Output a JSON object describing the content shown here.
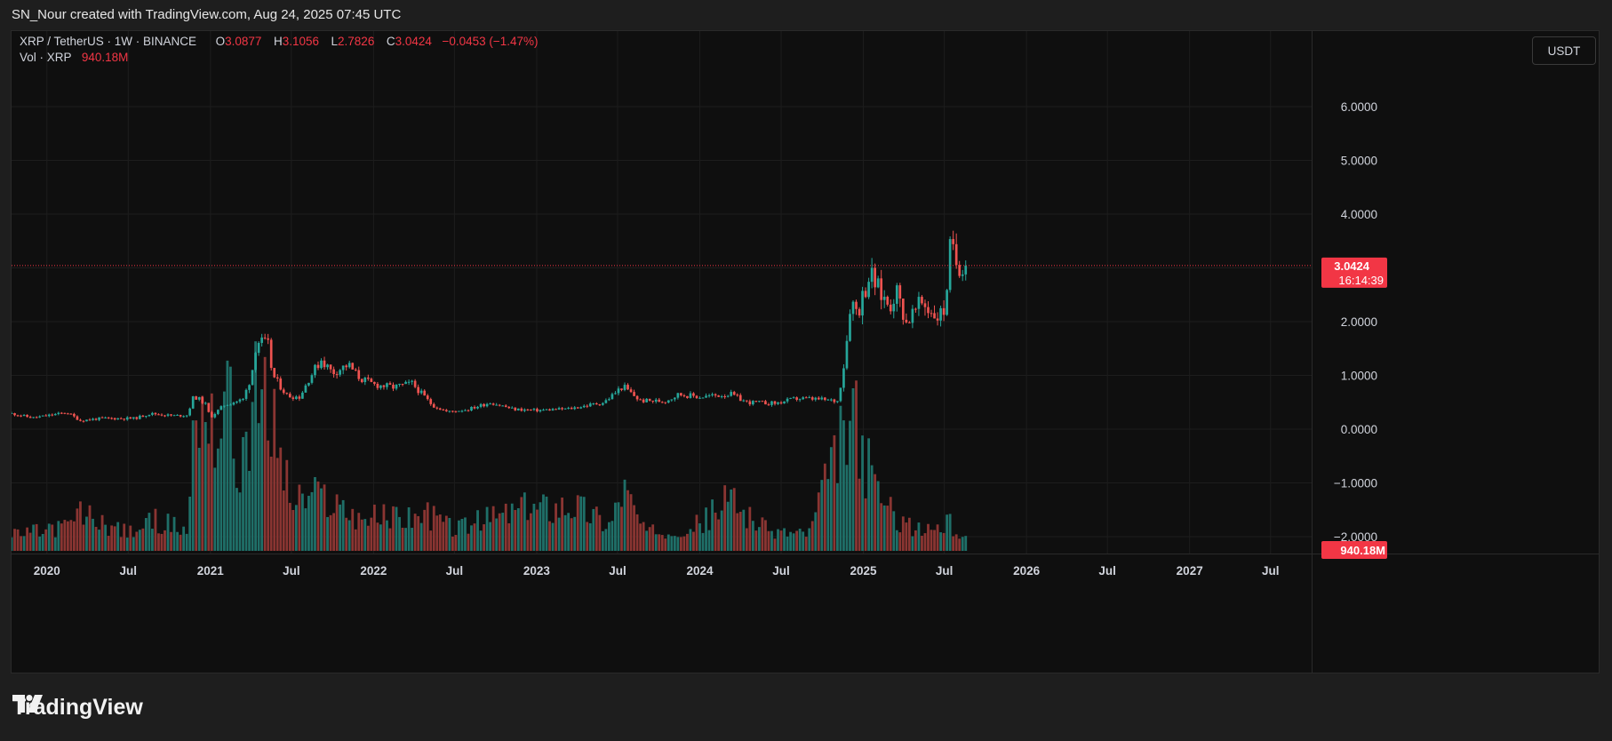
{
  "attribution": "SN_Nour created with TradingView.com, Aug 24, 2025 07:45 UTC",
  "legend": {
    "symbol": "XRP / TetherUS · 1W · BINANCE",
    "o_label": "O",
    "o_value": "3.0877",
    "h_label": "H",
    "h_value": "3.1056",
    "l_label": "L",
    "l_value": "2.7826",
    "c_label": "C",
    "c_value": "3.0424",
    "change": "−0.0453 (−1.47%)",
    "vol_label": "Vol · XRP",
    "vol_value": "940.18M"
  },
  "currency_button": "USDT",
  "price_badge": {
    "price": "3.0424",
    "countdown": "16:14:39"
  },
  "volume_badge": "940.18M",
  "brand": "TradingView",
  "colors": {
    "up": "#26a69a",
    "down": "#ef5350",
    "vol_up": "#1f6f68",
    "vol_down": "#8a3532",
    "last_price": "#f23645",
    "grid": "#1d1d1d",
    "axis_text": "#d1d4dc"
  },
  "chart_data": {
    "type": "candlestick",
    "title": "XRP / TetherUS · 1W · BINANCE",
    "ylim": [
      -2.35,
      6.9
    ],
    "y_ticks": [
      "6.0000",
      "5.0000",
      "4.0000",
      "2.0000",
      "1.0000",
      "0.0000",
      "−1.0000",
      "−2.0000"
    ],
    "y_tick_values": [
      6,
      5,
      4,
      2,
      1,
      0,
      -1,
      -2
    ],
    "x_ticks": [
      {
        "label": "2020",
        "date": "2020-01-01"
      },
      {
        "label": "Jul",
        "date": "2020-07-01"
      },
      {
        "label": "2021",
        "date": "2021-01-01"
      },
      {
        "label": "Jul",
        "date": "2021-07-01"
      },
      {
        "label": "2022",
        "date": "2022-01-01"
      },
      {
        "label": "Jul",
        "date": "2022-07-01"
      },
      {
        "label": "2023",
        "date": "2023-01-01"
      },
      {
        "label": "Jul",
        "date": "2023-07-01"
      },
      {
        "label": "2024",
        "date": "2024-01-01"
      },
      {
        "label": "Jul",
        "date": "2024-07-01"
      },
      {
        "label": "2025",
        "date": "2025-01-01"
      },
      {
        "label": "Jul",
        "date": "2025-07-01"
      },
      {
        "label": "2026",
        "date": "2026-01-01"
      },
      {
        "label": "Jul",
        "date": "2026-07-01"
      },
      {
        "label": "2027",
        "date": "2027-01-01"
      },
      {
        "label": "Jul",
        "date": "2027-07-01"
      }
    ],
    "x_range": [
      "2019-10-14",
      "2027-10-01"
    ],
    "last_price": 3.0424,
    "price_keypoints": [
      [
        "2019-10-14",
        0.29
      ],
      [
        "2019-12-01",
        0.21
      ],
      [
        "2020-02-15",
        0.31
      ],
      [
        "2020-03-16",
        0.16
      ],
      [
        "2020-05-01",
        0.2
      ],
      [
        "2020-07-15",
        0.2
      ],
      [
        "2020-08-20",
        0.29
      ],
      [
        "2020-10-10",
        0.25
      ],
      [
        "2020-11-10",
        0.26
      ],
      [
        "2020-11-25",
        0.62
      ],
      [
        "2020-12-20",
        0.48
      ],
      [
        "2021-01-01",
        0.22
      ],
      [
        "2021-02-01",
        0.45
      ],
      [
        "2021-02-20",
        0.5
      ],
      [
        "2021-03-15",
        0.55
      ],
      [
        "2021-04-03",
        1.0
      ],
      [
        "2021-04-14",
        1.65
      ],
      [
        "2021-05-10",
        1.55
      ],
      [
        "2021-05-20",
        1.0
      ],
      [
        "2021-06-22",
        0.62
      ],
      [
        "2021-07-20",
        0.6
      ],
      [
        "2021-08-10",
        0.95
      ],
      [
        "2021-09-06",
        1.3
      ],
      [
        "2021-10-01",
        1.05
      ],
      [
        "2021-11-05",
        1.2
      ],
      [
        "2021-12-01",
        0.95
      ],
      [
        "2022-01-01",
        0.83
      ],
      [
        "2022-02-15",
        0.78
      ],
      [
        "2022-03-28",
        0.85
      ],
      [
        "2022-05-12",
        0.45
      ],
      [
        "2022-06-15",
        0.32
      ],
      [
        "2022-08-01",
        0.37
      ],
      [
        "2022-09-20",
        0.5
      ],
      [
        "2022-11-10",
        0.37
      ],
      [
        "2023-01-01",
        0.35
      ],
      [
        "2023-03-15",
        0.38
      ],
      [
        "2023-06-01",
        0.5
      ],
      [
        "2023-07-13",
        0.8
      ],
      [
        "2023-08-20",
        0.53
      ],
      [
        "2023-10-15",
        0.52
      ],
      [
        "2023-11-15",
        0.65
      ],
      [
        "2024-01-01",
        0.6
      ],
      [
        "2024-03-10",
        0.65
      ],
      [
        "2024-04-15",
        0.5
      ],
      [
        "2024-06-20",
        0.48
      ],
      [
        "2024-08-05",
        0.57
      ],
      [
        "2024-09-15",
        0.56
      ],
      [
        "2024-11-05",
        0.52
      ],
      [
        "2024-11-22",
        1.4
      ],
      [
        "2024-12-03",
        2.4
      ],
      [
        "2024-12-20",
        2.2
      ],
      [
        "2025-01-15",
        2.9
      ],
      [
        "2025-02-10",
        2.5
      ],
      [
        "2025-03-01",
        2.3
      ],
      [
        "2025-03-15",
        2.6
      ],
      [
        "2025-04-07",
        2.0
      ],
      [
        "2025-05-12",
        2.35
      ],
      [
        "2025-06-15",
        2.1
      ],
      [
        "2025-07-01",
        2.2
      ],
      [
        "2025-07-15",
        3.4
      ],
      [
        "2025-07-28",
        3.1
      ],
      [
        "2025-08-24",
        3.0424
      ]
    ],
    "volume_keypoints": [
      [
        "2019-10-14",
        0.07
      ],
      [
        "2020-02-15",
        0.11
      ],
      [
        "2020-03-16",
        0.17
      ],
      [
        "2020-07-01",
        0.08
      ],
      [
        "2020-09-01",
        0.14
      ],
      [
        "2020-11-10",
        0.09
      ],
      [
        "2020-11-25",
        0.55
      ],
      [
        "2020-12-28",
        0.72
      ],
      [
        "2021-01-20",
        0.45
      ],
      [
        "2021-02-01",
        0.85
      ],
      [
        "2021-03-01",
        0.35
      ],
      [
        "2021-04-14",
        0.7
      ],
      [
        "2021-05-20",
        0.6
      ],
      [
        "2021-07-01",
        0.22
      ],
      [
        "2021-09-06",
        0.25
      ],
      [
        "2021-12-01",
        0.15
      ],
      [
        "2022-05-12",
        0.16
      ],
      [
        "2022-07-01",
        0.1
      ],
      [
        "2022-11-10",
        0.18
      ],
      [
        "2023-03-20",
        0.22
      ],
      [
        "2023-06-15",
        0.12
      ],
      [
        "2023-07-13",
        0.3
      ],
      [
        "2023-09-01",
        0.08
      ],
      [
        "2024-01-01",
        0.12
      ],
      [
        "2024-03-10",
        0.24
      ],
      [
        "2024-06-01",
        0.09
      ],
      [
        "2024-09-01",
        0.08
      ],
      [
        "2024-11-22",
        0.55
      ],
      [
        "2024-12-10",
        0.6
      ],
      [
        "2025-01-15",
        0.35
      ],
      [
        "2025-03-01",
        0.18
      ],
      [
        "2025-05-01",
        0.09
      ],
      [
        "2025-07-15",
        0.12
      ],
      [
        "2025-08-24",
        0.04
      ]
    ]
  }
}
